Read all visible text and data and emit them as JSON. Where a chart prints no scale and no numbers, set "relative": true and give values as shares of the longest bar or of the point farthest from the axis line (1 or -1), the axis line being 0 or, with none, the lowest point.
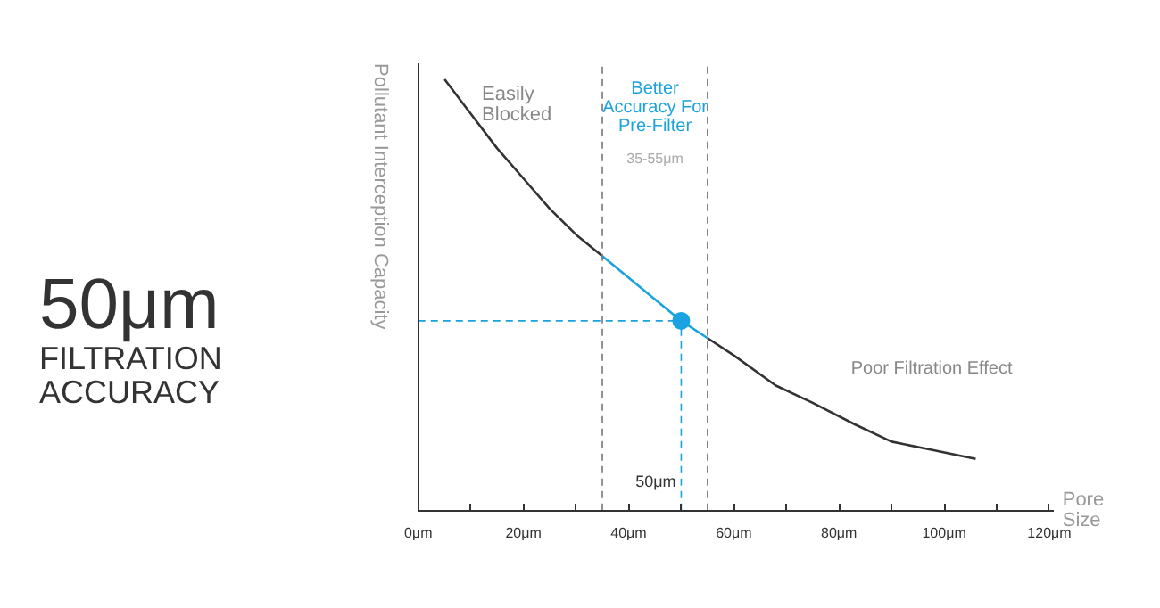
{
  "chart_data": {
    "type": "line",
    "title": "50μm",
    "subtitle": "FILTRATION ACCURACY",
    "xlabel": "Pore Size",
    "ylabel": "Pollutant Interception Capacity",
    "relative": true,
    "xlim": [
      0,
      121
    ],
    "xticks": [
      {
        "value": 0,
        "label": "0μm"
      },
      {
        "value": 10,
        "label": null
      },
      {
        "value": 20,
        "label": "20μm"
      },
      {
        "value": 30,
        "label": null
      },
      {
        "value": 40,
        "label": "40μm"
      },
      {
        "value": 50,
        "label": null
      },
      {
        "value": 60,
        "label": "60μm"
      },
      {
        "value": 70,
        "label": null
      },
      {
        "value": 80,
        "label": "80μm"
      },
      {
        "value": 90,
        "label": null
      },
      {
        "value": 100,
        "label": "100μm"
      },
      {
        "value": 110,
        "label": null
      },
      {
        "value": 120,
        "label": "120μm"
      }
    ],
    "series": [
      {
        "color": "#333333",
        "x": [
          5,
          10,
          15,
          20,
          25,
          30,
          35
        ],
        "values": [
          1,
          0.92,
          0.84,
          0.77,
          0.7,
          0.64,
          0.59
        ]
      },
      {
        "color": "#1aa3e0",
        "x": [
          35,
          40,
          45,
          50,
          55
        ],
        "values": [
          0.59,
          0.54,
          0.49,
          0.44,
          0.4
        ]
      },
      {
        "color": "#333333",
        "x": [
          55,
          60,
          68,
          75,
          83,
          90,
          98,
          106
        ],
        "values": [
          0.4,
          0.36,
          0.29,
          0.25,
          0.2,
          0.16,
          0.14,
          0.12
        ]
      },
      {
        "type": "scatter",
        "color": "#1aa3e0",
        "x": [
          50
        ],
        "values": [
          0.44
        ]
      }
    ],
    "ref_lines": [
      {
        "axis": "x",
        "value": 35,
        "color": "#777777",
        "line_style": "dashed"
      },
      {
        "axis": "x",
        "value": 55,
        "color": "#777777",
        "line_style": "dashed"
      },
      {
        "axis": "x",
        "value": 50,
        "label": "50μm",
        "color": "#1aa3e0",
        "line_style": "dashed"
      },
      {
        "axis": "y",
        "value": 0.44,
        "color": "#1aa3e0",
        "line_style": "dashed"
      }
    ],
    "annotations": [
      "Easily Blocked",
      "Better Accuracy For Pre-Filter",
      "35-55μm",
      "Poor Filtration Effect"
    ],
    "grid": false,
    "line_style": "solid"
  }
}
